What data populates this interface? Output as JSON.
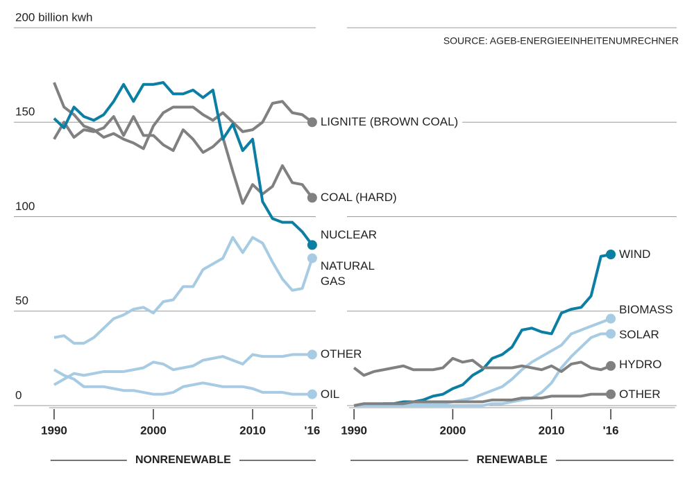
{
  "chart_data": [
    {
      "type": "line",
      "xlabel": "NONRENEWABLE",
      "x": [
        1990,
        1991,
        1992,
        1993,
        1994,
        1995,
        1996,
        1997,
        1998,
        1999,
        2000,
        2001,
        2002,
        2003,
        2004,
        2005,
        2006,
        2007,
        2008,
        2009,
        2010,
        2011,
        2012,
        2013,
        2014,
        2015,
        2016
      ],
      "xlim": [
        1989.5,
        2016.5
      ],
      "xticks": [
        1990,
        2000,
        2010,
        {
          "value": 2016,
          "label": "'16"
        }
      ],
      "ylim": [
        0,
        200
      ],
      "yticks": [
        0,
        50,
        100,
        150,
        {
          "value": 200,
          "label": "200 billion kwh"
        }
      ],
      "grid": true,
      "series": [
        {
          "name": "LIGNITE (BROWN COAL)",
          "color": "#808080",
          "values": [
            171,
            158,
            154,
            148,
            146,
            142,
            144,
            141,
            139,
            136,
            148,
            155,
            158,
            158,
            158,
            154,
            151,
            155,
            150,
            145,
            146,
            150,
            160,
            161,
            155,
            154,
            150
          ]
        },
        {
          "name": "COAL (HARD)",
          "color": "#808080",
          "values": [
            141,
            150,
            142,
            146,
            145,
            147,
            153,
            143,
            153,
            143,
            143,
            138,
            135,
            146,
            141,
            134,
            137,
            142,
            124,
            107,
            117,
            112,
            116,
            127,
            118,
            117,
            110
          ]
        },
        {
          "name": "NUCLEAR",
          "color": "#0b7ea3",
          "values": [
            152,
            147,
            158,
            153,
            151,
            154,
            161,
            170,
            161,
            170,
            170,
            171,
            165,
            165,
            167,
            163,
            167,
            141,
            149,
            135,
            141,
            108,
            99,
            97,
            97,
            92,
            85
          ]
        },
        {
          "name": "NATURAL GAS",
          "color": "#a6cbe3",
          "values": [
            36,
            37,
            33,
            33,
            36,
            41,
            46,
            48,
            51,
            52,
            49,
            55,
            56,
            63,
            63,
            72,
            75,
            78,
            89,
            81,
            89,
            86,
            76,
            67,
            61,
            62,
            78
          ]
        },
        {
          "name": "OTHER",
          "color": "#a6cbe3",
          "values": [
            11,
            14,
            17,
            16,
            17,
            18,
            18,
            18,
            19,
            20,
            23,
            22,
            19,
            20,
            21,
            24,
            25,
            26,
            24,
            22,
            27,
            26,
            26,
            26,
            27,
            27,
            27
          ]
        },
        {
          "name": "OIL",
          "color": "#a6cbe3",
          "values": [
            19,
            16,
            14,
            10,
            10,
            10,
            9,
            8,
            8,
            7,
            6,
            6,
            7,
            10,
            11,
            12,
            11,
            10,
            10,
            10,
            9,
            7,
            7,
            7,
            6,
            6,
            6
          ]
        }
      ]
    },
    {
      "type": "line",
      "xlabel": "RENEWABLE",
      "source": "SOURCE: AGEB-ENERGIEEINHEITENUMRECHNER",
      "sharey": true,
      "x": [
        1990,
        1991,
        1992,
        1993,
        1994,
        1995,
        1996,
        1997,
        1998,
        1999,
        2000,
        2001,
        2002,
        2003,
        2004,
        2005,
        2006,
        2007,
        2008,
        2009,
        2010,
        2011,
        2012,
        2013,
        2014,
        2015,
        2016
      ],
      "xlim": [
        1989.5,
        2022.5
      ],
      "xticks": [
        1990,
        2000,
        2010,
        {
          "value": 2016,
          "label": "'16"
        }
      ],
      "grid": true,
      "series": [
        {
          "name": "WIND",
          "color": "#0b7ea3",
          "values": [
            0,
            0,
            0,
            1,
            1,
            2,
            2,
            3,
            5,
            6,
            9,
            11,
            16,
            19,
            25,
            27,
            31,
            40,
            41,
            39,
            38,
            49,
            51,
            52,
            58,
            79,
            80
          ]
        },
        {
          "name": "BIOMASS",
          "color": "#a6cbe3",
          "values": [
            0,
            0,
            0,
            0,
            0,
            1,
            1,
            1,
            1,
            1,
            2,
            3,
            4,
            6,
            8,
            10,
            14,
            19,
            23,
            26,
            29,
            32,
            38,
            40,
            42,
            44,
            46
          ]
        },
        {
          "name": "SOLAR",
          "color": "#a6cbe3",
          "values": [
            0,
            0,
            0,
            0,
            0,
            0,
            0,
            0,
            0,
            0,
            0,
            0,
            0,
            0,
            1,
            1,
            2,
            3,
            4,
            7,
            12,
            20,
            26,
            31,
            36,
            38,
            38
          ]
        },
        {
          "name": "HYDRO",
          "color": "#808080",
          "values": [
            20,
            16,
            18,
            19,
            20,
            21,
            19,
            19,
            19,
            20,
            25,
            23,
            24,
            20,
            20,
            20,
            20,
            21,
            20,
            19,
            21,
            18,
            22,
            23,
            20,
            19,
            21
          ]
        },
        {
          "name": "OTHER",
          "color": "#808080",
          "values": [
            0,
            1,
            1,
            1,
            1,
            1,
            2,
            2,
            2,
            2,
            2,
            2,
            2,
            2,
            3,
            3,
            3,
            4,
            4,
            4,
            5,
            5,
            5,
            5,
            6,
            6,
            6
          ]
        }
      ]
    }
  ]
}
